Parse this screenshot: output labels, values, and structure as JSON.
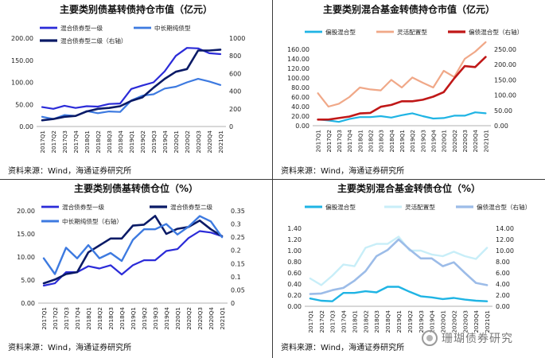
{
  "watermark": "珊瑚债券研究",
  "chart_data": [
    {
      "type": "line",
      "title": "主要类别债基转债持仓市值（亿元）",
      "source": "资料来源：Wind，海通证券研究所",
      "categories": [
        "2017Q1",
        "2017Q2",
        "2017Q3",
        "2017Q4",
        "2018Q1",
        "2018Q2",
        "2018Q3",
        "2018Q4",
        "2019Q1",
        "2019Q2",
        "2019Q3",
        "2019Q4",
        "2020Q1",
        "2020Q2",
        "2020Q3",
        "2020Q4",
        "2021Q1"
      ],
      "left_axis": {
        "min": 0,
        "max": 200,
        "ticks": [
          "0.00",
          "50.00",
          "100.00",
          "150.00",
          "200.00"
        ]
      },
      "right_axis": {
        "min": 0,
        "max": 1000,
        "ticks": [
          "0",
          "200",
          "400",
          "600",
          "800",
          "1000"
        ]
      },
      "legend": [
        "混合债券型一级",
        "中长期纯债型",
        "混合债券型二级（右轴）"
      ],
      "series": [
        {
          "name": "混合债券型一级",
          "axis": "left",
          "color": "#2b2bd8",
          "width": 2.2,
          "values": [
            44,
            40,
            47,
            42,
            46,
            45,
            51,
            52,
            85,
            93,
            100,
            125,
            160,
            178,
            177,
            166,
            164
          ]
        },
        {
          "name": "中长期纯债型",
          "axis": "left",
          "color": "#3d7ae0",
          "width": 2.2,
          "values": [
            22,
            17,
            26,
            24,
            35,
            30,
            34,
            33,
            59,
            70,
            73,
            86,
            90,
            100,
            108,
            102,
            94
          ]
        },
        {
          "name": "混合债券型二级（右轴）",
          "axis": "right",
          "color": "#0a1a66",
          "width": 2.6,
          "values": [
            70,
            85,
            110,
            120,
            170,
            200,
            210,
            230,
            290,
            330,
            440,
            540,
            620,
            650,
            860,
            860,
            870
          ]
        }
      ]
    },
    {
      "type": "line",
      "title": "主要类别混合基金转债持仓市值（亿元）",
      "source": "资料来源：Wind，海通证券研究所",
      "categories": [
        "2017Q1",
        "2017Q2",
        "2017Q3",
        "2017Q4",
        "2018Q1",
        "2018Q2",
        "2018Q3",
        "2018Q4",
        "2019Q1",
        "2019Q2",
        "2019Q3",
        "2019Q4",
        "2020Q1",
        "2020Q2",
        "2020Q3",
        "2020Q4",
        "2021Q1"
      ],
      "left_axis": {
        "min": 0,
        "max": 160,
        "ticks": [
          "0.00",
          "20.00",
          "40.00",
          "60.00",
          "80.00",
          "100.00",
          "120.00",
          "140.00",
          "160.00"
        ]
      },
      "right_axis": {
        "min": 0,
        "max": 250,
        "ticks": [
          "0.00",
          "50.00",
          "100.00",
          "150.00",
          "200.00",
          "250.00"
        ]
      },
      "legend": [
        "偏股混合型",
        "灵活配置型",
        "偏债混合型（右轴）"
      ],
      "series": [
        {
          "name": "偏股混合型",
          "axis": "left",
          "color": "#1fb4e4",
          "width": 2.2,
          "values": [
            13,
            11,
            8,
            14,
            18,
            18,
            20,
            17,
            22,
            26,
            20,
            15,
            16,
            21,
            21,
            28,
            26
          ]
        },
        {
          "name": "灵活配置型",
          "axis": "left",
          "color": "#f0a888",
          "width": 2.2,
          "values": [
            68,
            40,
            46,
            60,
            80,
            76,
            74,
            96,
            80,
            101,
            90,
            80,
            115,
            102,
            140,
            155,
            175
          ]
        },
        {
          "name": "偏债混合型（右轴）",
          "axis": "right",
          "color": "#c01818",
          "width": 2.6,
          "values": [
            20,
            20,
            25,
            30,
            40,
            42,
            62,
            68,
            80,
            80,
            85,
            95,
            110,
            155,
            195,
            192,
            225
          ]
        }
      ]
    },
    {
      "type": "line",
      "title": "主要类别债基转债仓位（%）",
      "source": "资料来源：Wind，海通证券研究所",
      "categories": [
        "2017Q1",
        "2017Q2",
        "2017Q3",
        "2017Q4",
        "2018Q1",
        "2018Q2",
        "2018Q3",
        "2018Q4",
        "2019Q1",
        "2019Q2",
        "2019Q3",
        "2019Q4",
        "2020Q1",
        "2020Q2",
        "2020Q3",
        "2020Q4",
        "2021Q1"
      ],
      "left_axis": {
        "min": 0,
        "max": 20,
        "ticks": [
          "0.00",
          "5.00",
          "10.00",
          "15.00",
          "20.00"
        ]
      },
      "right_axis": {
        "min": 0,
        "max": 0.35,
        "ticks": [
          "0",
          "0.05",
          "0.1",
          "0.15",
          "0.2",
          "0.25",
          "0.3",
          "0.35"
        ]
      },
      "legend": [
        "混合债券型一级",
        "混合债券型二级",
        "中长期纯债型（右轴）"
      ],
      "series": [
        {
          "name": "混合债券型一级",
          "axis": "left",
          "color": "#2b2bd8",
          "width": 2.2,
          "values": [
            3.8,
            4.3,
            6.7,
            6.7,
            8.0,
            7.5,
            8.2,
            6.2,
            8.2,
            9.3,
            9.3,
            11.3,
            11.7,
            14.1,
            15.6,
            15.3,
            14.5
          ]
        },
        {
          "name": "混合债券型二级",
          "axis": "left",
          "color": "#0a1a66",
          "width": 2.6,
          "values": [
            4.3,
            5.1,
            6.3,
            6.7,
            11.0,
            12.5,
            14.0,
            14.0,
            16.8,
            17.0,
            18.9,
            15.0,
            16.1,
            16.5,
            17.9,
            16.0,
            14.5
          ]
        },
        {
          "name": "中长期纯债型（右轴）",
          "axis": "right",
          "color": "#3d7ae0",
          "width": 2.4,
          "values": [
            0.17,
            0.11,
            0.21,
            0.17,
            0.22,
            0.17,
            0.19,
            0.16,
            0.24,
            0.28,
            0.28,
            0.3,
            0.26,
            0.29,
            0.33,
            0.31,
            0.25
          ]
        }
      ]
    },
    {
      "type": "line",
      "title": "主要类别混合基金转债仓位（%）",
      "source": "资料来源：Wind，海通证券研究所",
      "categories": [
        "2017Q1",
        "2017Q2",
        "2017Q3",
        "2017Q4",
        "2018Q1",
        "2018Q2",
        "2018Q3",
        "2018Q4",
        "2019Q1",
        "2019Q2",
        "2019Q3",
        "2019Q4",
        "2020Q1",
        "2020Q2",
        "2020Q3",
        "2020Q4",
        "2021Q1"
      ],
      "left_axis": {
        "min": 0,
        "max": 1.4,
        "ticks": [
          "0.00",
          "0.20",
          "0.40",
          "0.60",
          "0.80",
          "1.00",
          "1.20",
          "1.40"
        ]
      },
      "right_axis": {
        "min": 0,
        "max": 14,
        "ticks": [
          "0.00",
          "2.00",
          "4.00",
          "6.00",
          "8.00",
          "10.00",
          "12.00",
          "14.00"
        ]
      },
      "legend": [
        "偏股混合型",
        "灵活配置型",
        "偏债混合型（右轴）"
      ],
      "series": [
        {
          "name": "偏股混合型",
          "axis": "left",
          "color": "#1fb4e4",
          "width": 2.4,
          "values": [
            0.14,
            0.1,
            0.09,
            0.24,
            0.24,
            0.27,
            0.25,
            0.35,
            0.35,
            0.26,
            0.18,
            0.16,
            0.13,
            0.15,
            0.12,
            0.1,
            0.09
          ]
        },
        {
          "name": "灵活配置型",
          "axis": "left",
          "color": "#c8eef8",
          "width": 2.4,
          "values": [
            0.5,
            0.38,
            0.55,
            0.75,
            0.72,
            1.05,
            1.12,
            1.12,
            1.25,
            1.0,
            1.0,
            0.93,
            0.9,
            0.98,
            0.9,
            0.85,
            1.05
          ]
        },
        {
          "name": "偏债混合型（右轴）",
          "axis": "right",
          "color": "#9cbce8",
          "width": 2.6,
          "values": [
            2.2,
            2.3,
            2.9,
            3.3,
            4.6,
            6.3,
            9.0,
            10.1,
            12.0,
            10.2,
            8.6,
            8.6,
            7.2,
            7.9,
            6.0,
            4.2,
            3.8
          ]
        }
      ]
    }
  ]
}
